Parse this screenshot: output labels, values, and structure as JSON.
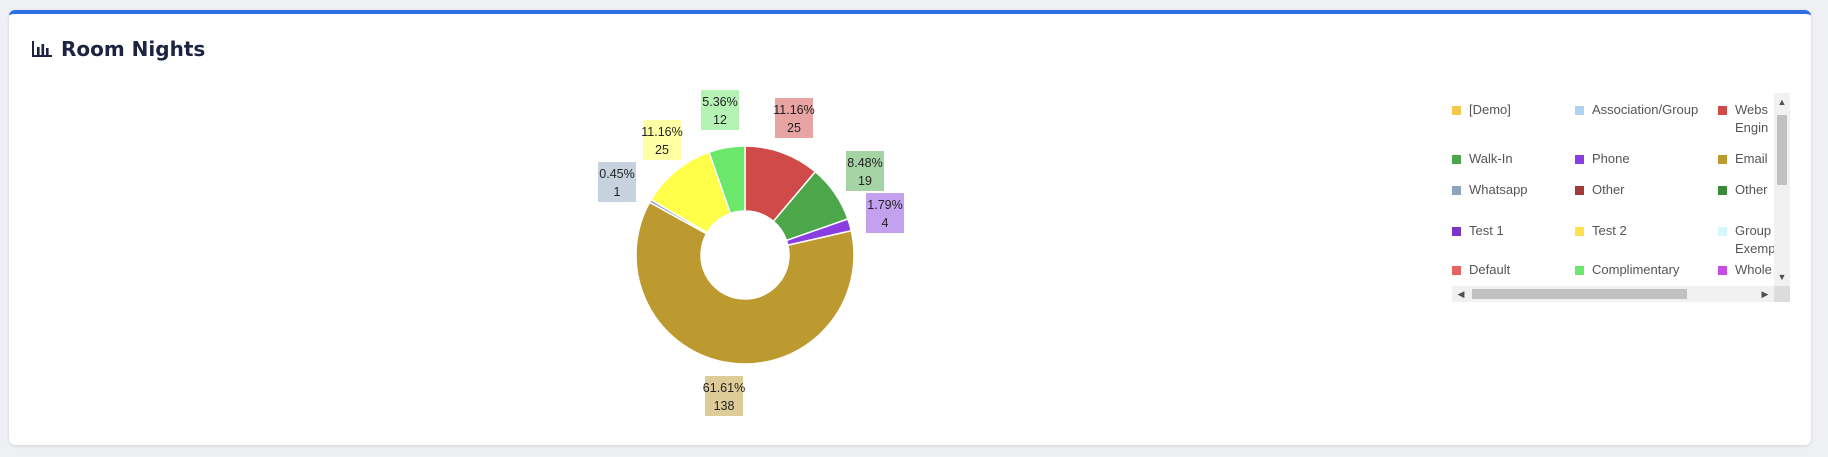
{
  "widget": {
    "title": "Room Nights",
    "icon": "bar-chart-icon"
  },
  "chart_data": {
    "type": "pie",
    "variant": "donut",
    "series": [
      {
        "name": "Website/Booking Engine",
        "label_name": "Webs Engin",
        "value": 25,
        "percent": "11.16%",
        "color": "#d04a4a"
      },
      {
        "name": "Walk-In",
        "value": 19,
        "percent": "8.48%",
        "color": "#4ca64a"
      },
      {
        "name": "Phone",
        "value": 4,
        "percent": "1.79%",
        "color": "#8a3de0"
      },
      {
        "name": "Email",
        "value": 138,
        "percent": "61.61%",
        "color": "#bc9a30"
      },
      {
        "name": "Whatsapp",
        "value": 1,
        "percent": "0.45%",
        "color": "#8da6bd"
      },
      {
        "name": "Test 2",
        "value": 25,
        "percent": "11.16%",
        "color": "#ffff4a"
      },
      {
        "name": "Complimentary",
        "value": 12,
        "percent": "5.36%",
        "color": "#6be86b"
      }
    ],
    "data_labels": [
      {
        "percent": "11.16%",
        "value": "25",
        "bg": "#e8a3a3"
      },
      {
        "percent": "8.48%",
        "value": "19",
        "bg": "#a5d3a4"
      },
      {
        "percent": "1.79%",
        "value": "4",
        "bg": "#c4a1ef"
      },
      {
        "percent": "61.61%",
        "value": "138",
        "bg": "#ddcc97"
      },
      {
        "percent": "0.45%",
        "value": "1",
        "bg": "#c6d2de"
      },
      {
        "percent": "11.16%",
        "value": "25",
        "bg": "#ffffa4"
      },
      {
        "percent": "5.36%",
        "value": "12",
        "bg": "#b5f3b5"
      }
    ],
    "legend_placement": "right"
  },
  "legend": {
    "items": [
      {
        "label": "[Demo]",
        "color": "#f2c94c"
      },
      {
        "label": "Association/Group",
        "color": "#aed3f0"
      },
      {
        "label": "Webs Engin",
        "color": "#d04a4a"
      },
      {
        "label": "Walk-In",
        "color": "#4ca64a"
      },
      {
        "label": "Phone",
        "color": "#8a3de0"
      },
      {
        "label": "Email",
        "color": "#bc9a30"
      },
      {
        "label": "Whatsapp",
        "color": "#8da6bd"
      },
      {
        "label": "Other",
        "color": "#a33a3a"
      },
      {
        "label": "Other",
        "color": "#3a8a3a"
      },
      {
        "label": "Test 1",
        "color": "#7b35c9"
      },
      {
        "label": "Test 2",
        "color": "#ffe14a"
      },
      {
        "label": "Group Exemp",
        "color": "#d4f8fb"
      },
      {
        "label": "Default",
        "color": "#e86464"
      },
      {
        "label": "Complimentary",
        "color": "#6be86b"
      },
      {
        "label": "Whole",
        "color": "#c44ce0"
      }
    ]
  }
}
